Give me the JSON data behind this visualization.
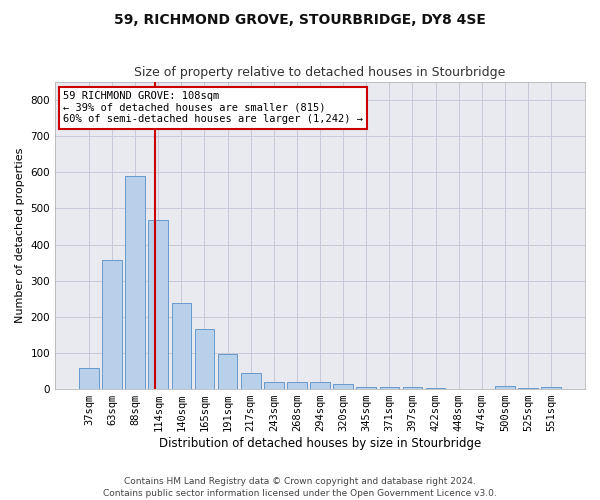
{
  "title": "59, RICHMOND GROVE, STOURBRIDGE, DY8 4SE",
  "subtitle": "Size of property relative to detached houses in Stourbridge",
  "xlabel": "Distribution of detached houses by size in Stourbridge",
  "ylabel": "Number of detached properties",
  "bar_labels": [
    "37sqm",
    "63sqm",
    "88sqm",
    "114sqm",
    "140sqm",
    "165sqm",
    "191sqm",
    "217sqm",
    "243sqm",
    "268sqm",
    "294sqm",
    "320sqm",
    "345sqm",
    "371sqm",
    "397sqm",
    "422sqm",
    "448sqm",
    "474sqm",
    "500sqm",
    "525sqm",
    "551sqm"
  ],
  "bar_values": [
    57,
    356,
    590,
    468,
    237,
    165,
    96,
    44,
    20,
    19,
    19,
    14,
    6,
    5,
    5,
    2,
    0,
    0,
    8,
    2,
    5
  ],
  "bar_color": "#b8d0ea",
  "bar_edge_color": "#6699cc",
  "vline_x": 2.85,
  "vline_color": "#cc0000",
  "annotation_text": "59 RICHMOND GROVE: 108sqm\n← 39% of detached houses are smaller (815)\n60% of semi-detached houses are larger (1,242) →",
  "annotation_box_color": "#ffffff",
  "annotation_box_edge": "#cc0000",
  "ylim": [
    0,
    850
  ],
  "yticks": [
    0,
    100,
    200,
    300,
    400,
    500,
    600,
    700,
    800
  ],
  "grid_color": "#c8c8d8",
  "bg_color": "#e8eaf0",
  "footer": "Contains HM Land Registry data © Crown copyright and database right 2024.\nContains public sector information licensed under the Open Government Licence v3.0.",
  "title_fontsize": 10,
  "subtitle_fontsize": 9,
  "xlabel_fontsize": 8.5,
  "ylabel_fontsize": 8,
  "tick_fontsize": 7.5,
  "footer_fontsize": 6.5,
  "annot_fontsize": 7.5
}
